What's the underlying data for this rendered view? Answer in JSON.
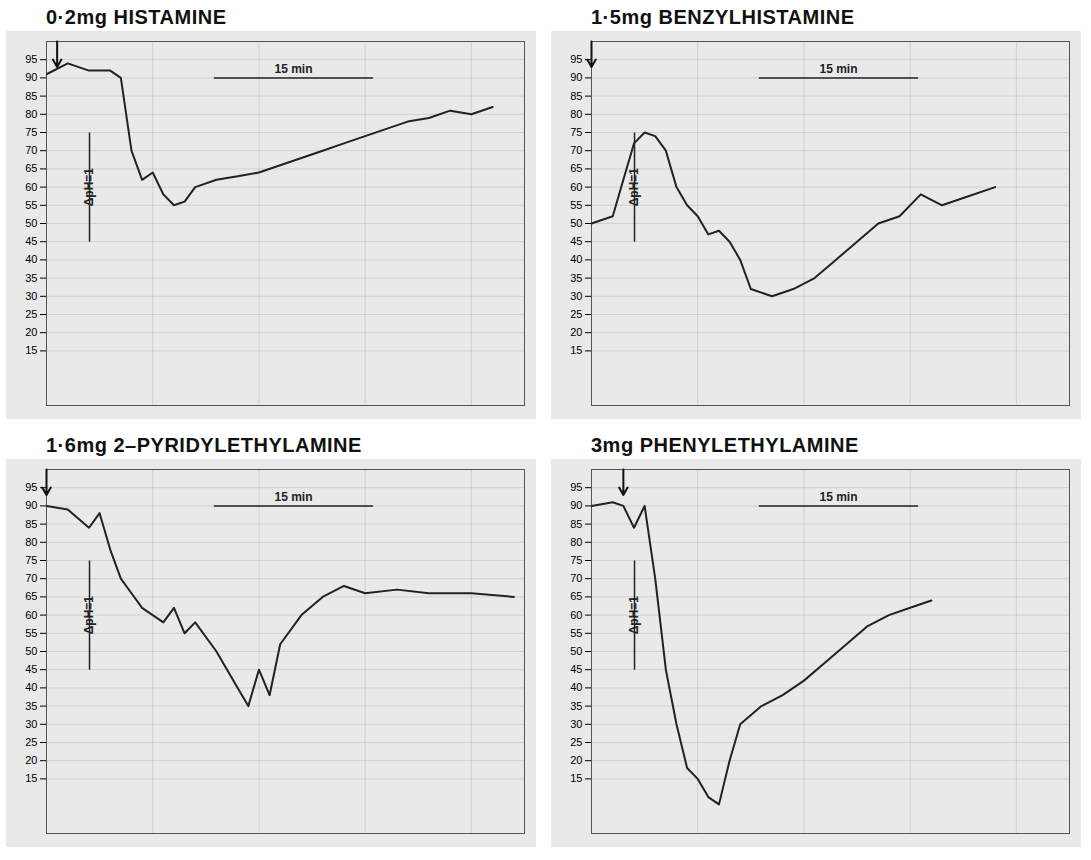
{
  "chart_data": [
    {
      "type": "line",
      "title": "0·2mg HISTAMINE",
      "color": "#222222",
      "grid": true,
      "tick_labels": "y",
      "xlim": [
        0,
        45
      ],
      "ylim": [
        0,
        100
      ],
      "yticks": [
        15,
        20,
        25,
        30,
        35,
        40,
        45,
        50,
        55,
        60,
        65,
        70,
        75,
        80,
        85,
        90,
        95
      ],
      "injection": 1,
      "scale_bar": {
        "label": "15 min",
        "value": 15
      },
      "calibration": {
        "label": "ΔpH=1",
        "value": 30
      },
      "x": [
        0,
        2,
        4,
        6,
        7,
        8,
        9,
        10,
        11,
        12,
        13,
        14,
        16,
        18,
        20,
        22,
        24,
        26,
        28,
        30,
        32,
        34,
        36,
        38,
        40,
        42
      ],
      "values": [
        91,
        94,
        92,
        92,
        90,
        70,
        62,
        64,
        58,
        55,
        56,
        60,
        62,
        63,
        64,
        66,
        68,
        70,
        72,
        74,
        76,
        78,
        79,
        81,
        80,
        82
      ]
    },
    {
      "type": "line",
      "title": "1·5mg BENZYLHISTAMINE",
      "color": "#222222",
      "grid": true,
      "tick_labels": "y",
      "xlim": [
        0,
        45
      ],
      "ylim": [
        0,
        100
      ],
      "yticks": [
        15,
        20,
        25,
        30,
        35,
        40,
        45,
        50,
        55,
        60,
        65,
        70,
        75,
        80,
        85,
        90,
        95
      ],
      "injection": 0,
      "scale_bar": {
        "label": "15 min",
        "value": 15
      },
      "calibration": {
        "label": "ΔpH=1",
        "value": 30
      },
      "x": [
        0,
        2,
        3,
        4,
        5,
        6,
        7,
        8,
        9,
        10,
        11,
        12,
        13,
        14,
        15,
        17,
        19,
        21,
        23,
        25,
        27,
        29,
        31,
        33,
        35,
        38
      ],
      "values": [
        50,
        52,
        62,
        72,
        75,
        74,
        70,
        60,
        55,
        52,
        47,
        48,
        45,
        40,
        32,
        30,
        32,
        35,
        40,
        45,
        50,
        52,
        58,
        55,
        57,
        60
      ]
    },
    {
      "type": "line",
      "title": "1·6mg 2–PYRIDYLETHYLAMINE",
      "color": "#222222",
      "grid": true,
      "tick_labels": "y",
      "xlim": [
        0,
        45
      ],
      "ylim": [
        0,
        100
      ],
      "yticks": [
        15,
        20,
        25,
        30,
        35,
        40,
        45,
        50,
        55,
        60,
        65,
        70,
        75,
        80,
        85,
        90,
        95
      ],
      "injection": 0,
      "scale_bar": {
        "label": "15 min",
        "value": 15
      },
      "calibration": {
        "label": "ΔpH=1",
        "value": 30
      },
      "x": [
        0,
        2,
        4,
        5,
        6,
        7,
        8,
        9,
        10,
        11,
        12,
        13,
        14,
        16,
        18,
        19,
        20,
        21,
        22,
        24,
        26,
        28,
        30,
        33,
        36,
        40,
        44
      ],
      "values": [
        90,
        89,
        84,
        88,
        78,
        70,
        66,
        62,
        60,
        58,
        62,
        55,
        58,
        50,
        40,
        35,
        45,
        38,
        52,
        60,
        65,
        68,
        66,
        67,
        66,
        66,
        65
      ]
    },
    {
      "type": "line",
      "title": "3mg PHENYLETHYLAMINE",
      "color": "#222222",
      "grid": true,
      "tick_labels": "y",
      "xlim": [
        0,
        45
      ],
      "ylim": [
        0,
        100
      ],
      "yticks": [
        15,
        20,
        25,
        30,
        35,
        40,
        45,
        50,
        55,
        60,
        65,
        70,
        75,
        80,
        85,
        90,
        95
      ],
      "injection": 3,
      "scale_bar": {
        "label": "15 min",
        "value": 15
      },
      "calibration": {
        "label": "ΔpH=1",
        "value": 30
      },
      "x": [
        0,
        2,
        3,
        4,
        5,
        6,
        7,
        8,
        9,
        10,
        11,
        12,
        13,
        14,
        16,
        18,
        20,
        22,
        24,
        26,
        28,
        30,
        32
      ],
      "values": [
        90,
        91,
        90,
        84,
        90,
        70,
        45,
        30,
        18,
        15,
        10,
        8,
        20,
        30,
        35,
        38,
        42,
        47,
        52,
        57,
        60,
        62,
        64
      ]
    }
  ]
}
